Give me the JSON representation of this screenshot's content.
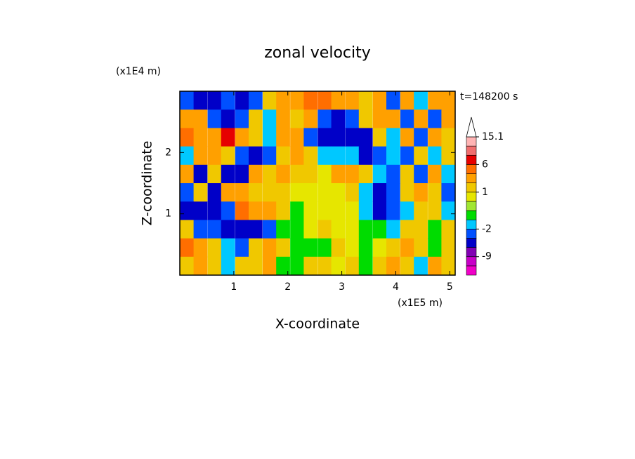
{
  "chart_data": {
    "type": "contour",
    "title": "zonal velocity",
    "time_label": "t=148200 s",
    "xlabel": "X-coordinate",
    "ylabel": "Z-coordinate",
    "x_unit": "(x1E5 m)",
    "y_unit": "(x1E4 m)",
    "xlim": [
      0,
      5.1
    ],
    "ylim": [
      0,
      3
    ],
    "xticks": [
      1,
      2,
      3,
      4,
      5
    ],
    "yticks": [
      1,
      2
    ],
    "x": [
      0.13,
      0.38,
      0.64,
      0.89,
      1.15,
      1.4,
      1.66,
      1.91,
      2.17,
      2.42,
      2.68,
      2.93,
      3.19,
      3.44,
      3.7,
      3.95,
      4.21,
      4.46,
      4.72,
      4.97
    ],
    "y": [
      2.85,
      2.55,
      2.25,
      1.95,
      1.65,
      1.35,
      1.05,
      0.75,
      0.45,
      0.15
    ],
    "values": [
      [
        -3,
        -5,
        -5,
        -3,
        -5,
        -3,
        1,
        3,
        3,
        5,
        5,
        3,
        2,
        1,
        3,
        -3,
        3,
        -2,
        3,
        2
      ],
      [
        2,
        3,
        -3,
        -5,
        -3,
        1,
        -1.5,
        2,
        1,
        3,
        -3,
        -5,
        -3,
        1,
        2,
        3,
        -3,
        3,
        -3,
        2
      ],
      [
        5,
        3,
        3,
        7,
        3,
        1,
        -1.5,
        3,
        2,
        -3,
        -6,
        -6,
        -6,
        -5,
        1,
        -1.5,
        3,
        -3,
        2,
        1
      ],
      [
        -2,
        3,
        3,
        1,
        -3,
        -5,
        -3,
        1,
        3,
        1,
        -1.5,
        -1.5,
        -1.5,
        -5,
        -3,
        -1.5,
        -3,
        1,
        -2,
        1
      ],
      [
        2,
        -5,
        1,
        -5,
        -5,
        3,
        1,
        3,
        1,
        1,
        0.7,
        3,
        3,
        1,
        -1.5,
        -3,
        1,
        -3,
        3,
        -1.5
      ],
      [
        -3,
        1,
        -5,
        3,
        3,
        1,
        1,
        1,
        0.7,
        0.7,
        0.7,
        0.7,
        1,
        -1.5,
        -5,
        -3,
        1,
        3,
        1,
        -3
      ],
      [
        -5,
        -5,
        -5,
        -3,
        5,
        3,
        3,
        1,
        -0.5,
        0.7,
        0.7,
        0.7,
        0.7,
        -1.5,
        -5,
        -3,
        -1.5,
        1,
        1,
        -1.5
      ],
      [
        1,
        -3,
        -3,
        -5,
        -6,
        -5,
        -3,
        -0.5,
        -0.5,
        0.7,
        1,
        0.7,
        0.7,
        -0.5,
        -0.5,
        -1.5,
        1,
        1,
        -0.5,
        1
      ],
      [
        5,
        3,
        1,
        -1.5,
        -3,
        1,
        3,
        1,
        -0.5,
        -0.5,
        -0.5,
        1,
        0.7,
        -0.5,
        0.7,
        1,
        3,
        1,
        -0.5,
        1
      ],
      [
        1,
        3,
        1,
        -1.5,
        1,
        1,
        3,
        -0.5,
        -0.5,
        1,
        1,
        0.7,
        1,
        -0.5,
        1,
        3,
        1,
        -1.5,
        3,
        1
      ]
    ],
    "colorbar": {
      "levels": [
        -12,
        -9,
        -6,
        -4,
        -2,
        -1,
        0,
        0.5,
        1,
        2,
        4,
        6,
        9,
        12,
        15.1
      ],
      "colors": [
        "#f000c8",
        "#c800c8",
        "#8200b4",
        "#0000c8",
        "#0050ff",
        "#00c8ff",
        "#00dc00",
        "#a0e632",
        "#e6e600",
        "#f0c800",
        "#ffa000",
        "#ff6e00",
        "#e60000",
        "#f06e6e",
        "#ffb4b4",
        "#ffffff"
      ],
      "ticks": [
        -9,
        -2,
        1,
        6,
        15.1
      ]
    }
  }
}
